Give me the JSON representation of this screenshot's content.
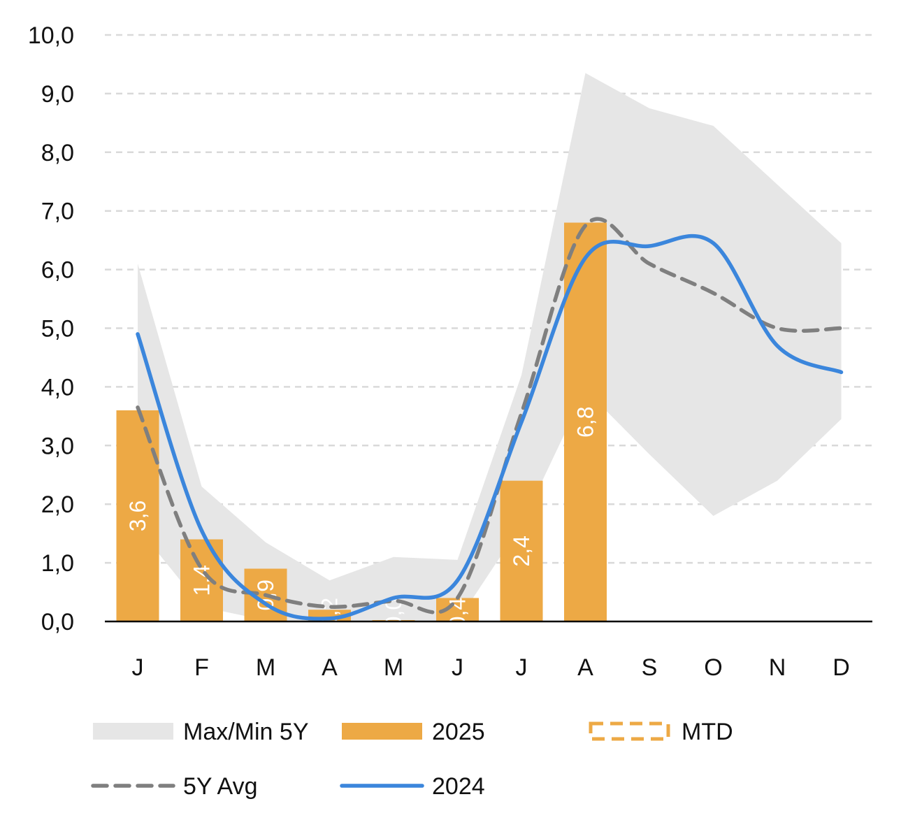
{
  "chart_data": {
    "type": "bar",
    "categories": [
      "J",
      "F",
      "M",
      "A",
      "M",
      "J",
      "J",
      "A",
      "S",
      "O",
      "N",
      "D"
    ],
    "ylim": [
      0,
      10
    ],
    "yticks": [
      "0,0",
      "1,0",
      "2,0",
      "3,0",
      "4,0",
      "5,0",
      "6,0",
      "7,0",
      "8,0",
      "9,0",
      "10,0"
    ],
    "grid": "horizontal dashed",
    "series": [
      {
        "name": "Max/Min 5Y",
        "type": "band",
        "max": [
          6.1,
          2.3,
          1.35,
          0.7,
          1.1,
          1.05,
          4.2,
          9.35,
          8.75,
          8.45,
          7.45,
          6.45
        ],
        "min": [
          1.6,
          0.25,
          0.02,
          0.0,
          0.0,
          0.0,
          1.65,
          3.95,
          2.85,
          1.8,
          2.4,
          3.45
        ]
      },
      {
        "name": "2025",
        "type": "bar",
        "values": [
          3.6,
          1.4,
          0.9,
          0.2,
          0.0,
          0.4,
          2.4,
          6.8,
          null,
          null,
          null,
          null
        ],
        "labels": [
          "3,6",
          "1,4",
          "0,9",
          "0,2",
          "0,0",
          "0,4",
          "2,4",
          "6,8",
          "",
          "",
          "",
          ""
        ]
      },
      {
        "name": "MTD",
        "type": "bar-outline",
        "values": [
          null,
          null,
          null,
          null,
          null,
          null,
          null,
          null,
          null,
          null,
          null,
          null
        ]
      },
      {
        "name": "5Y Avg",
        "type": "line-dashed",
        "values": [
          3.65,
          0.9,
          0.45,
          0.25,
          0.35,
          0.4,
          3.55,
          6.75,
          6.1,
          5.6,
          5.0,
          5.0
        ]
      },
      {
        "name": "2024",
        "type": "line",
        "values": [
          4.9,
          1.55,
          0.3,
          0.05,
          0.4,
          0.7,
          3.4,
          6.2,
          6.4,
          6.45,
          4.7,
          4.25
        ]
      }
    ],
    "legend": [
      {
        "label": "Max/Min 5Y",
        "swatch": "band"
      },
      {
        "label": "2025",
        "swatch": "bar"
      },
      {
        "label": "MTD",
        "swatch": "outline"
      },
      {
        "label": "5Y Avg",
        "swatch": "dashed"
      },
      {
        "label": "2024",
        "swatch": "line"
      }
    ],
    "colors": {
      "band": "#e6e6e6",
      "bar": "#eda945",
      "avg": "#7f7f7f",
      "line2024": "#3b86dc",
      "grid": "#d9d9d9",
      "axis": "#000000",
      "barlabel": "#ffffff"
    }
  }
}
